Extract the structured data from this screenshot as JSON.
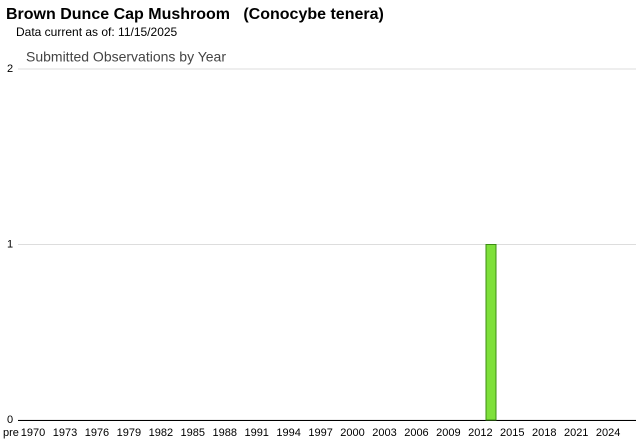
{
  "chart_data": {
    "type": "bar",
    "title": "Brown Dunce Cap Mushroom   (Conocybe tenera)",
    "subtitle": "Data current as of: 11/15/2025",
    "chart_title": "Submitted Observations by Year",
    "categories": [
      "pre",
      "1970",
      null,
      null,
      "1973",
      null,
      null,
      "1976",
      null,
      null,
      "1979",
      null,
      null,
      "1982",
      null,
      null,
      "1985",
      null,
      null,
      "1988",
      null,
      null,
      "1991",
      null,
      null,
      "1994",
      null,
      null,
      "1997",
      null,
      null,
      "2000",
      null,
      null,
      "2003",
      null,
      null,
      "2006",
      null,
      null,
      "2009",
      null,
      null,
      "2012",
      null,
      null,
      "2015",
      null,
      null,
      "2018",
      null,
      null,
      "2021",
      null,
      null,
      "2024",
      null
    ],
    "values": [
      0,
      0,
      0,
      0,
      0,
      0,
      0,
      0,
      0,
      0,
      0,
      0,
      0,
      0,
      0,
      0,
      0,
      0,
      0,
      0,
      0,
      0,
      0,
      0,
      0,
      0,
      0,
      0,
      0,
      0,
      0,
      0,
      0,
      0,
      0,
      0,
      0,
      0,
      0,
      0,
      0,
      0,
      0,
      0,
      1,
      0,
      0,
      0,
      0,
      0,
      0,
      0,
      0,
      0,
      0,
      0,
      0
    ],
    "color": "#7ee03a",
    "ylim": [
      0,
      2
    ],
    "yticks": [
      0,
      1,
      2
    ],
    "grid": true
  }
}
